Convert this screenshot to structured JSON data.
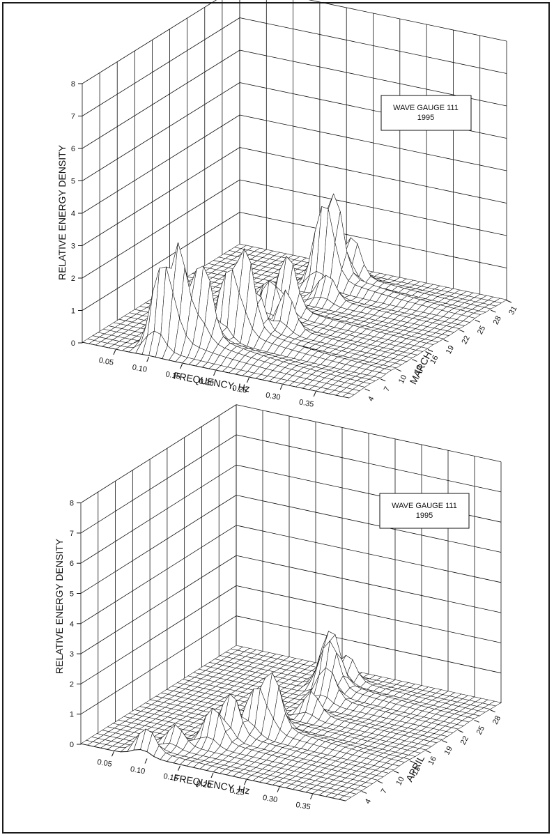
{
  "chart_data": [
    {
      "type": "surface3d",
      "box_title": "WAVE GAUGE 111",
      "box_year": "1995",
      "zlabel": "RELATIVE ENERGY DENSITY",
      "xlabel": "FREQUENCY, Hz",
      "ylabel": "MARCH",
      "z_ticks": [
        "0",
        "1",
        "2",
        "3",
        "4",
        "5",
        "6",
        "7",
        "8"
      ],
      "x_ticks": [
        "0.05",
        "0.10",
        "0.15",
        "0.20",
        "0.25",
        "0.30",
        "0.35"
      ],
      "y_ticks": [
        "4",
        "7",
        "10",
        "13",
        "16",
        "19",
        "22",
        "25",
        "28",
        "31"
      ],
      "zlim": [
        0,
        8
      ],
      "xlim": [
        0.0,
        0.4
      ],
      "ylim": [
        1,
        31
      ],
      "grid": true,
      "peaks": [
        {
          "day": 3,
          "freq": 0.1,
          "height": 2.3
        },
        {
          "day": 4,
          "freq": 0.12,
          "height": 2.5
        },
        {
          "day": 5,
          "freq": 0.15,
          "height": 2.2
        },
        {
          "day": 6,
          "freq": 0.13,
          "height": 2.0
        },
        {
          "day": 8,
          "freq": 0.16,
          "height": 1.9
        },
        {
          "day": 9,
          "freq": 0.18,
          "height": 2.6
        },
        {
          "day": 11,
          "freq": 0.18,
          "height": 1.3
        },
        {
          "day": 13,
          "freq": 0.21,
          "height": 1.1
        },
        {
          "day": 15,
          "freq": 0.17,
          "height": 1.2
        },
        {
          "day": 17,
          "freq": 0.18,
          "height": 1.8
        },
        {
          "day": 19,
          "freq": 0.14,
          "height": 0.7
        },
        {
          "day": 22,
          "freq": 0.2,
          "height": 0.8
        },
        {
          "day": 25,
          "freq": 0.17,
          "height": 2.0
        },
        {
          "day": 26,
          "freq": 0.18,
          "height": 2.3
        },
        {
          "day": 28,
          "freq": 0.19,
          "height": 1.3
        }
      ]
    },
    {
      "type": "surface3d",
      "box_title": "WAVE GAUGE 111",
      "box_year": "1995",
      "zlabel": "RELATIVE ENERGY DENSITY",
      "xlabel": "FREQUENCY, Hz",
      "ylabel": "APRIL",
      "z_ticks": [
        "0",
        "1",
        "2",
        "3",
        "4",
        "5",
        "6",
        "7",
        "8"
      ],
      "x_ticks": [
        "0.05",
        "0.10",
        "0.15",
        "0.20",
        "0.25",
        "0.30",
        "0.35"
      ],
      "y_ticks": [
        "4",
        "7",
        "10",
        "13",
        "16",
        "19",
        "22",
        "25",
        "28"
      ],
      "zlim": [
        0,
        8
      ],
      "xlim": [
        0.0,
        0.4
      ],
      "ylim": [
        1,
        30
      ],
      "grid": true,
      "peaks": [
        {
          "day": 2,
          "freq": 0.09,
          "height": 0.8
        },
        {
          "day": 5,
          "freq": 0.11,
          "height": 0.6
        },
        {
          "day": 7,
          "freq": 0.15,
          "height": 1.2
        },
        {
          "day": 9,
          "freq": 0.16,
          "height": 1.5
        },
        {
          "day": 11,
          "freq": 0.18,
          "height": 1.4
        },
        {
          "day": 12,
          "freq": 0.2,
          "height": 1.6
        },
        {
          "day": 13,
          "freq": 0.19,
          "height": 1.1
        },
        {
          "day": 15,
          "freq": 0.17,
          "height": 0.9
        },
        {
          "day": 18,
          "freq": 0.21,
          "height": 0.7
        },
        {
          "day": 22,
          "freq": 0.2,
          "height": 1.1
        },
        {
          "day": 24,
          "freq": 0.19,
          "height": 1.3
        },
        {
          "day": 25,
          "freq": 0.18,
          "height": 1.6
        },
        {
          "day": 27,
          "freq": 0.19,
          "height": 0.9
        }
      ]
    }
  ]
}
